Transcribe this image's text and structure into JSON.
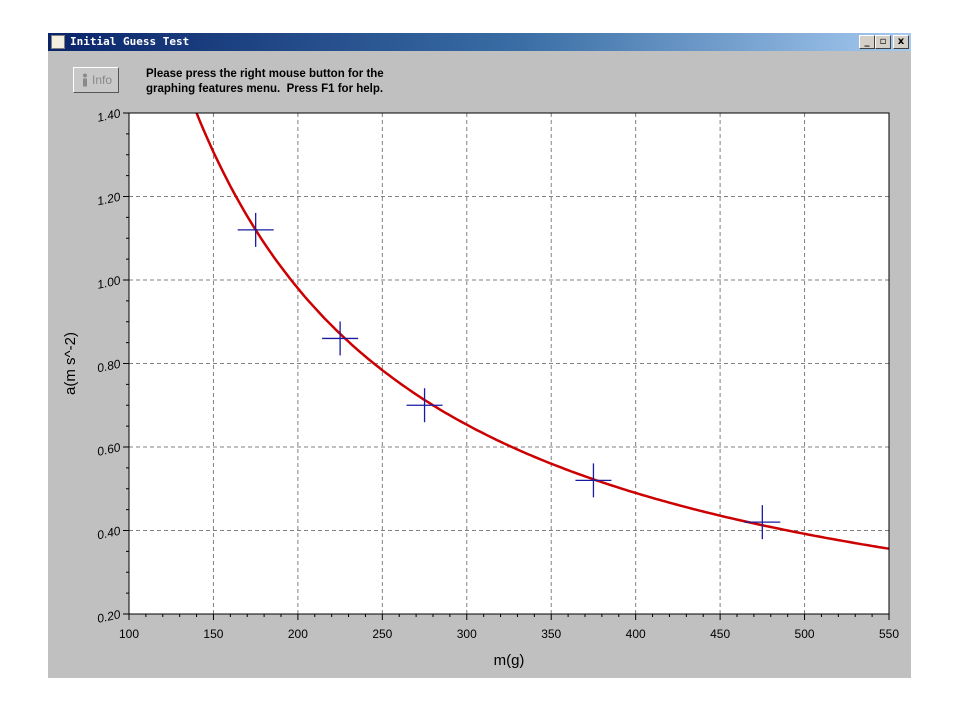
{
  "window": {
    "title": "Initial Guess Test",
    "minimize_glyph": "_",
    "restore_glyph": "▫",
    "close_glyph": "x"
  },
  "toolbar": {
    "info_label": "Info",
    "info_icon": "info-icon",
    "help_line1": "Please press the right mouse button for the",
    "help_line2": "graphing features menu.  Press F1 for help."
  },
  "colors": {
    "curve": "#cc0000",
    "points": "#1a1aa0",
    "grid": "#808080",
    "plot_background": "#ffffff",
    "window_background": "#c0c0c0"
  },
  "chart_data": {
    "type": "scatter",
    "xlabel": "m(g)",
    "ylabel": "a(m s^-2)",
    "xlim": [
      100,
      550
    ],
    "ylim": [
      0.2,
      1.4
    ],
    "x_ticks": [
      "100",
      "150",
      "200",
      "250",
      "300",
      "350",
      "400",
      "450",
      "500",
      "550"
    ],
    "y_ticks": [
      "0.20",
      "0.40",
      "0.60",
      "0.80",
      "1.00",
      "1.20",
      "1.40"
    ],
    "grid": true,
    "points": [
      {
        "x": 175,
        "y": 1.12
      },
      {
        "x": 225,
        "y": 0.86
      },
      {
        "x": 275,
        "y": 0.7
      },
      {
        "x": 375,
        "y": 0.52
      },
      {
        "x": 475,
        "y": 0.42
      }
    ],
    "fit_curve": {
      "form": "a = k / m",
      "k": 196
    }
  }
}
